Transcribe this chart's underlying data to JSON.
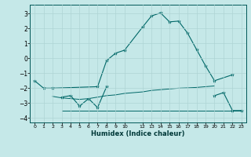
{
  "background_color": "#c5e8e8",
  "grid_color": "#afd4d4",
  "line_color": "#006868",
  "xlabel": "Humidex (Indice chaleur)",
  "xlim": [
    -0.5,
    23.5
  ],
  "ylim": [
    -4.3,
    3.6
  ],
  "yticks": [
    -4,
    -3,
    -2,
    -1,
    0,
    1,
    2,
    3
  ],
  "xticks": [
    0,
    1,
    2,
    3,
    4,
    5,
    6,
    7,
    8,
    9,
    10,
    12,
    13,
    14,
    15,
    16,
    17,
    18,
    19,
    20,
    21,
    22,
    23
  ],
  "xtick_labels": [
    "0",
    "1",
    "2",
    "3",
    "4",
    "5",
    "6",
    "7",
    "8",
    "9",
    "10",
    "12",
    "13",
    "14",
    "15",
    "16",
    "17",
    "18",
    "19",
    "20",
    "21",
    "22",
    "23"
  ],
  "line1_x": [
    0,
    1,
    2,
    7,
    8,
    9,
    10,
    12,
    13,
    14,
    15,
    16,
    17,
    18,
    19,
    20,
    22
  ],
  "line1_y": [
    -1.5,
    -2.0,
    -2.0,
    -1.9,
    -0.15,
    0.35,
    0.55,
    2.1,
    2.85,
    3.05,
    2.45,
    2.5,
    1.7,
    0.6,
    -0.5,
    -1.5,
    -1.1
  ],
  "line2_x": [
    3,
    4,
    5,
    6,
    7,
    8,
    20,
    21,
    22,
    23
  ],
  "line2_y": [
    -2.6,
    -2.5,
    -3.2,
    -2.7,
    -3.3,
    -1.9,
    -2.5,
    -2.3,
    -3.5,
    -3.5
  ],
  "line3_x": [
    2,
    3,
    4,
    5,
    6,
    7,
    8,
    9,
    10,
    12,
    13,
    14,
    15,
    16,
    17,
    18,
    19,
    20
  ],
  "line3_y": [
    -2.55,
    -2.65,
    -2.7,
    -2.75,
    -2.7,
    -2.6,
    -2.5,
    -2.45,
    -2.35,
    -2.25,
    -2.15,
    -2.1,
    -2.05,
    -2.0,
    -1.98,
    -1.95,
    -1.9,
    -1.85
  ],
  "line4_x": [
    3,
    4,
    5,
    6,
    7,
    8,
    9,
    10,
    12,
    13,
    14,
    15,
    16,
    17,
    18,
    19,
    20,
    21,
    22,
    23
  ],
  "line4_y": [
    -3.5,
    -3.5,
    -3.5,
    -3.5,
    -3.5,
    -3.5,
    -3.5,
    -3.5,
    -3.5,
    -3.5,
    -3.5,
    -3.5,
    -3.5,
    -3.5,
    -3.5,
    -3.5,
    -3.5,
    -3.5,
    -3.5,
    -3.5
  ]
}
